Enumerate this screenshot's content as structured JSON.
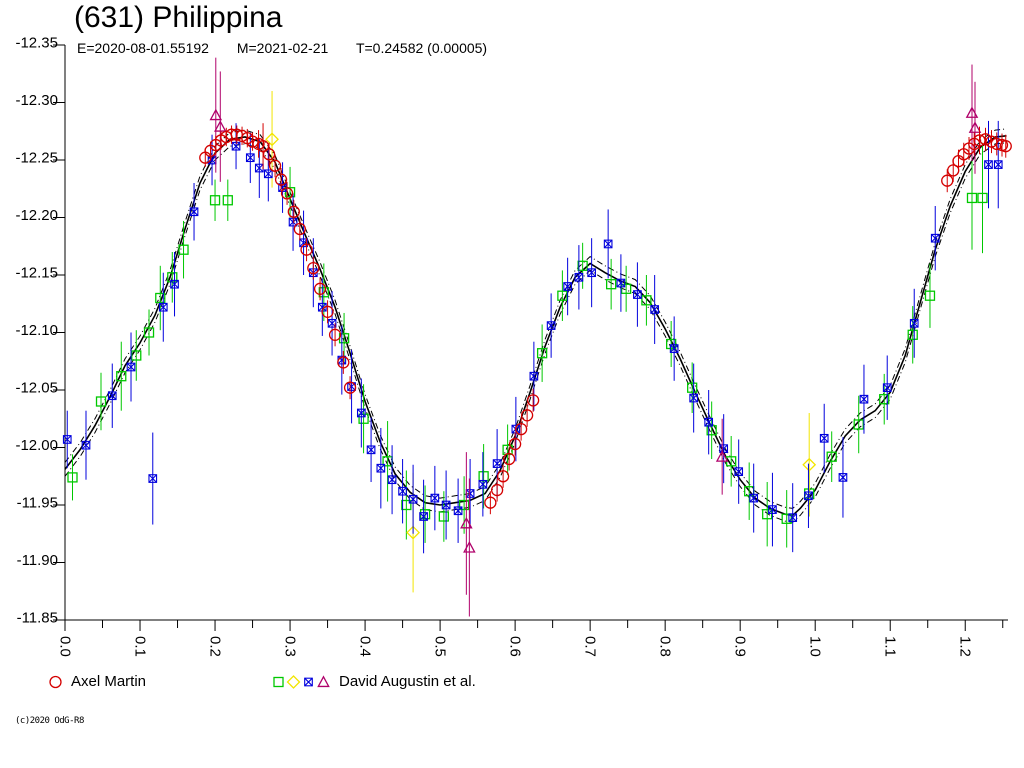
{
  "header": {
    "title": "(631) Philippina",
    "epoch": "E=2020-08-01.55192",
    "mean_date": "M=2021-02-21",
    "period": "T=0.24582 (0.00005)"
  },
  "legend": {
    "items": [
      {
        "label": "Axel Martin",
        "markers": [
          {
            "shape": "circle",
            "color": "#d40000"
          }
        ]
      },
      {
        "label": "David Augustin et al.",
        "markers": [
          {
            "shape": "square",
            "color": "#00c800"
          },
          {
            "shape": "diamond",
            "color": "#f2e500"
          },
          {
            "shape": "crossed-square",
            "color": "#0000dd"
          },
          {
            "shape": "triangle",
            "color": "#b0006a"
          }
        ]
      }
    ]
  },
  "footer": {
    "text": "(c)2020 OdG-R8"
  },
  "chart_data": {
    "type": "scatter",
    "title": "(631) Philippina",
    "subtitle": "E=2020-08-01.55192  M=2021-02-21  T=0.24582 (0.00005)",
    "xlabel": "",
    "ylabel": "",
    "xlim": [
      0,
      1.257
    ],
    "ylim": [
      -12.35,
      -11.85
    ],
    "y_axis_inverted": true,
    "grid": false,
    "legend_position": "bottom",
    "x_ticks_major": [
      0.0,
      0.1,
      0.2,
      0.3,
      0.4,
      0.5,
      0.6,
      0.7,
      0.8,
      0.9,
      1.0,
      1.1,
      1.2
    ],
    "x_tick_labels": [
      "0.0",
      "0.1",
      "0.2",
      "0.3",
      "0.4",
      "0.5",
      "0.6",
      "0.7",
      "0.8",
      "0.9",
      "1.0",
      "1.1",
      "1.2"
    ],
    "x_ticks_minor": [
      0.05,
      0.15,
      0.25,
      0.35,
      0.45,
      0.55,
      0.65,
      0.75,
      0.85,
      0.95,
      1.05,
      1.15,
      1.25
    ],
    "y_ticks": [
      -12.35,
      -12.3,
      -12.25,
      -12.2,
      -12.15,
      -12.1,
      -12.05,
      -12.0,
      -11.95,
      -11.9,
      -11.85
    ],
    "y_tick_labels": [
      "-12.35",
      "-12.30",
      "-12.25",
      "-12.20",
      "-12.15",
      "-12.10",
      "-12.05",
      "-12.00",
      "-11.95",
      "-11.90",
      "-11.85"
    ],
    "model_curve": {
      "color": "#000000",
      "envelope_offset": 0.006,
      "points": [
        [
          0.0,
          -11.981
        ],
        [
          0.02,
          -11.998
        ],
        [
          0.04,
          -12.019
        ],
        [
          0.06,
          -12.044
        ],
        [
          0.08,
          -12.071
        ],
        [
          0.1,
          -12.091
        ],
        [
          0.12,
          -12.115
        ],
        [
          0.14,
          -12.148
        ],
        [
          0.16,
          -12.19
        ],
        [
          0.18,
          -12.23
        ],
        [
          0.2,
          -12.256
        ],
        [
          0.22,
          -12.268
        ],
        [
          0.24,
          -12.27
        ],
        [
          0.26,
          -12.266
        ],
        [
          0.28,
          -12.248
        ],
        [
          0.3,
          -12.216
        ],
        [
          0.32,
          -12.185
        ],
        [
          0.34,
          -12.155
        ],
        [
          0.36,
          -12.122
        ],
        [
          0.38,
          -12.082
        ],
        [
          0.4,
          -12.04
        ],
        [
          0.42,
          -12.005
        ],
        [
          0.44,
          -11.977
        ],
        [
          0.46,
          -11.961
        ],
        [
          0.48,
          -11.952
        ],
        [
          0.5,
          -11.95
        ],
        [
          0.52,
          -11.952
        ],
        [
          0.54,
          -11.954
        ],
        [
          0.56,
          -11.96
        ],
        [
          0.58,
          -11.98
        ],
        [
          0.6,
          -12.01
        ],
        [
          0.62,
          -12.048
        ],
        [
          0.64,
          -12.088
        ],
        [
          0.66,
          -12.122
        ],
        [
          0.68,
          -12.148
        ],
        [
          0.7,
          -12.16
        ],
        [
          0.72,
          -12.152
        ],
        [
          0.74,
          -12.145
        ],
        [
          0.76,
          -12.14
        ],
        [
          0.78,
          -12.126
        ],
        [
          0.8,
          -12.103
        ],
        [
          0.82,
          -12.077
        ],
        [
          0.84,
          -12.048
        ],
        [
          0.86,
          -12.02
        ],
        [
          0.88,
          -11.993
        ],
        [
          0.9,
          -11.972
        ],
        [
          0.92,
          -11.956
        ],
        [
          0.94,
          -11.947
        ],
        [
          0.96,
          -11.942
        ],
        [
          0.97,
          -11.941
        ],
        [
          0.98,
          -11.947
        ],
        [
          1.0,
          -11.963
        ],
        [
          1.02,
          -11.988
        ],
        [
          1.04,
          -12.01
        ],
        [
          1.06,
          -12.024
        ],
        [
          1.08,
          -12.032
        ],
        [
          1.1,
          -12.048
        ],
        [
          1.12,
          -12.08
        ],
        [
          1.14,
          -12.126
        ],
        [
          1.16,
          -12.172
        ],
        [
          1.18,
          -12.21
        ],
        [
          1.2,
          -12.24
        ],
        [
          1.22,
          -12.261
        ],
        [
          1.24,
          -12.27
        ],
        [
          1.255,
          -12.271
        ]
      ]
    },
    "series": [
      {
        "name": "David Augustin et al. (squares)",
        "marker": "square",
        "color": "#00c800",
        "points": [
          [
            0.01,
            -11.974,
            0.02
          ],
          [
            0.048,
            -12.04,
            0.025
          ],
          [
            0.075,
            -12.062,
            0.03
          ],
          [
            0.095,
            -12.08,
            0.022
          ],
          [
            0.112,
            -12.1,
            0.02
          ],
          [
            0.127,
            -12.13,
            0.028
          ],
          [
            0.143,
            -12.148,
            0.022
          ],
          [
            0.158,
            -12.172,
            0.025
          ],
          [
            0.2,
            -12.215,
            0.018
          ],
          [
            0.217,
            -12.215,
            0.018
          ],
          [
            0.3,
            -12.222,
            0.022
          ],
          [
            0.345,
            -12.135,
            0.025
          ],
          [
            0.372,
            -12.095,
            0.022
          ],
          [
            0.398,
            -12.025,
            0.03
          ],
          [
            0.43,
            -11.988,
            0.035
          ],
          [
            0.455,
            -11.95,
            0.03
          ],
          [
            0.48,
            -11.942,
            0.025
          ],
          [
            0.505,
            -11.94,
            0.022
          ],
          [
            0.532,
            -11.95,
            0.025
          ],
          [
            0.558,
            -11.975,
            0.028
          ],
          [
            0.59,
            -11.998,
            0.022
          ],
          [
            0.636,
            -12.082,
            0.025
          ],
          [
            0.663,
            -12.132,
            0.022
          ],
          [
            0.69,
            -12.158,
            0.02
          ],
          [
            0.728,
            -12.142,
            0.022
          ],
          [
            0.748,
            -12.138,
            0.02
          ],
          [
            0.775,
            -12.128,
            0.022
          ],
          [
            0.808,
            -12.09,
            0.02
          ],
          [
            0.836,
            -12.052,
            0.022
          ],
          [
            0.862,
            -12.015,
            0.025
          ],
          [
            0.888,
            -11.988,
            0.022
          ],
          [
            0.912,
            -11.962,
            0.025
          ],
          [
            0.936,
            -11.942,
            0.028
          ],
          [
            0.962,
            -11.938,
            0.025
          ],
          [
            0.992,
            -11.96,
            0.02
          ],
          [
            1.022,
            -11.992,
            0.022
          ],
          [
            1.058,
            -12.02,
            0.025
          ],
          [
            1.092,
            -12.042,
            0.022
          ],
          [
            1.13,
            -12.098,
            0.025
          ],
          [
            1.153,
            -12.132,
            0.028
          ],
          [
            1.209,
            -12.217,
            0.045
          ],
          [
            1.223,
            -12.217,
            0.048
          ]
        ]
      },
      {
        "name": "David Augustin et al. (diamonds)",
        "marker": "diamond",
        "color": "#f2e500",
        "points": [
          [
            0.276,
            -12.268,
            0.042
          ],
          [
            0.464,
            -11.926,
            0.052
          ],
          [
            0.992,
            -11.985,
            0.045
          ]
        ]
      },
      {
        "name": "David Augustin et al. (crossed squares)",
        "marker": "crossed-square",
        "color": "#0000dd",
        "points": [
          [
            0.003,
            -12.007,
            0.025
          ],
          [
            0.028,
            -12.002,
            0.03
          ],
          [
            0.063,
            -12.045,
            0.028
          ],
          [
            0.088,
            -12.07,
            0.03
          ],
          [
            0.117,
            -11.973,
            0.04
          ],
          [
            0.131,
            -12.122,
            0.03
          ],
          [
            0.146,
            -12.142,
            0.028
          ],
          [
            0.172,
            -12.205,
            0.025
          ],
          [
            0.196,
            -12.25,
            0.022
          ],
          [
            0.228,
            -12.262,
            0.02
          ],
          [
            0.247,
            -12.252,
            0.022
          ],
          [
            0.259,
            -12.243,
            0.026
          ],
          [
            0.271,
            -12.238,
            0.024
          ],
          [
            0.29,
            -12.226,
            0.022
          ],
          [
            0.304,
            -12.196,
            0.025
          ],
          [
            0.318,
            -12.178,
            0.028
          ],
          [
            0.331,
            -12.152,
            0.03
          ],
          [
            0.343,
            -12.122,
            0.025
          ],
          [
            0.356,
            -12.108,
            0.028
          ],
          [
            0.369,
            -12.076,
            0.03
          ],
          [
            0.382,
            -12.053,
            0.032
          ],
          [
            0.395,
            -12.03,
            0.03
          ],
          [
            0.408,
            -11.998,
            0.028
          ],
          [
            0.421,
            -11.982,
            0.035
          ],
          [
            0.436,
            -11.972,
            0.03
          ],
          [
            0.45,
            -11.962,
            0.028
          ],
          [
            0.464,
            -11.955,
            0.03
          ],
          [
            0.478,
            -11.94,
            0.032
          ],
          [
            0.493,
            -11.956,
            0.028
          ],
          [
            0.508,
            -11.95,
            0.03
          ],
          [
            0.524,
            -11.945,
            0.028
          ],
          [
            0.54,
            -11.96,
            0.03
          ],
          [
            0.557,
            -11.968,
            0.028
          ],
          [
            0.576,
            -11.986,
            0.03
          ],
          [
            0.601,
            -12.016,
            0.028
          ],
          [
            0.625,
            -12.062,
            0.03
          ],
          [
            0.648,
            -12.106,
            0.028
          ],
          [
            0.67,
            -12.14,
            0.025
          ],
          [
            0.685,
            -12.148,
            0.028
          ],
          [
            0.702,
            -12.152,
            0.03
          ],
          [
            0.724,
            -12.177,
            0.03
          ],
          [
            0.741,
            -12.143,
            0.025
          ],
          [
            0.763,
            -12.133,
            0.028
          ],
          [
            0.786,
            -12.12,
            0.03
          ],
          [
            0.812,
            -12.086,
            0.028
          ],
          [
            0.838,
            -12.043,
            0.03
          ],
          [
            0.858,
            -12.022,
            0.028
          ],
          [
            0.878,
            -11.999,
            0.03
          ],
          [
            0.898,
            -11.979,
            0.028
          ],
          [
            0.918,
            -11.956,
            0.03
          ],
          [
            0.943,
            -11.946,
            0.032
          ],
          [
            0.97,
            -11.939,
            0.03
          ],
          [
            0.991,
            -11.958,
            0.028
          ],
          [
            1.012,
            -12.008,
            0.03
          ],
          [
            1.037,
            -11.974,
            0.035
          ],
          [
            1.065,
            -12.042,
            0.03
          ],
          [
            1.096,
            -12.052,
            0.028
          ],
          [
            1.132,
            -12.108,
            0.03
          ],
          [
            1.16,
            -12.182,
            0.028
          ],
          [
            1.231,
            -12.246,
            0.038
          ],
          [
            1.244,
            -12.246,
            0.038
          ]
        ]
      },
      {
        "name": "David Augustin et al. (triangles)",
        "marker": "triangle",
        "color": "#b0006a",
        "points": [
          [
            0.201,
            -12.289,
            0.05
          ],
          [
            0.207,
            -12.279,
            0.048
          ],
          [
            0.535,
            -11.934,
            0.062
          ],
          [
            0.539,
            -11.913,
            0.06
          ],
          [
            0.876,
            -11.992,
            0.033
          ],
          [
            1.209,
            -12.291,
            0.042
          ],
          [
            1.213,
            -12.278,
            0.04
          ]
        ]
      },
      {
        "name": "Axel Martin",
        "marker": "circle",
        "color": "#d40000",
        "points": [
          [
            0.187,
            -12.252,
            0.008
          ],
          [
            0.194,
            -12.258,
            0.008
          ],
          [
            0.201,
            -12.263,
            0.008
          ],
          [
            0.208,
            -12.267,
            0.008
          ],
          [
            0.215,
            -12.27,
            0.008
          ],
          [
            0.222,
            -12.272,
            0.008
          ],
          [
            0.229,
            -12.272,
            0.008
          ],
          [
            0.236,
            -12.271,
            0.008
          ],
          [
            0.243,
            -12.269,
            0.008
          ],
          [
            0.25,
            -12.266,
            0.008
          ],
          [
            0.258,
            -12.264,
            0.012
          ],
          [
            0.264,
            -12.262,
            0.02
          ],
          [
            0.272,
            -12.255,
            0.01
          ],
          [
            0.28,
            -12.245,
            0.01
          ],
          [
            0.288,
            -12.233,
            0.01
          ],
          [
            0.296,
            -12.221,
            0.01
          ],
          [
            0.305,
            -12.205,
            0.01
          ],
          [
            0.313,
            -12.19,
            0.01
          ],
          [
            0.322,
            -12.172,
            0.01
          ],
          [
            0.331,
            -12.156,
            0.01
          ],
          [
            0.34,
            -12.138,
            0.01
          ],
          [
            0.35,
            -12.118,
            0.01
          ],
          [
            0.36,
            -12.098,
            0.01
          ],
          [
            0.371,
            -12.074,
            0.01
          ],
          [
            0.38,
            -12.052,
            0.01
          ],
          [
            0.567,
            -11.952,
            0.01
          ],
          [
            0.576,
            -11.963,
            0.01
          ],
          [
            0.584,
            -11.975,
            0.01
          ],
          [
            0.592,
            -11.99,
            0.01
          ],
          [
            0.6,
            -12.003,
            0.01
          ],
          [
            0.608,
            -12.016,
            0.01
          ],
          [
            0.616,
            -12.028,
            0.01
          ],
          [
            0.624,
            -12.041,
            0.01
          ],
          [
            1.176,
            -12.232,
            0.01
          ],
          [
            1.184,
            -12.241,
            0.01
          ],
          [
            1.191,
            -12.249,
            0.01
          ],
          [
            1.198,
            -12.255,
            0.01
          ],
          [
            1.205,
            -12.26,
            0.01
          ],
          [
            1.212,
            -12.264,
            0.01
          ],
          [
            1.219,
            -12.267,
            0.012
          ],
          [
            1.227,
            -12.268,
            0.01
          ],
          [
            1.235,
            -12.266,
            0.01
          ],
          [
            1.242,
            -12.264,
            0.01
          ],
          [
            1.249,
            -12.263,
            0.01
          ],
          [
            1.254,
            -12.262,
            0.01
          ]
        ]
      }
    ]
  }
}
